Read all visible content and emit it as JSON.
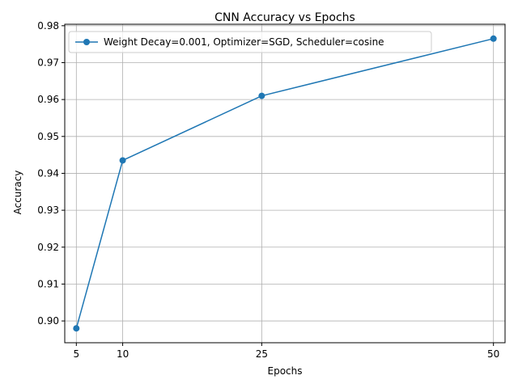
{
  "chart_data": {
    "type": "line",
    "title": "CNN Accuracy vs Epochs",
    "xlabel": "Epochs",
    "ylabel": "Accuracy",
    "x": [
      5,
      10,
      25,
      50
    ],
    "xticks": [
      5,
      10,
      25,
      50
    ],
    "xlim": [
      3.75,
      51.25
    ],
    "yticks": [
      0.9,
      0.91,
      0.92,
      0.93,
      0.94,
      0.95,
      0.96,
      0.97,
      0.98
    ],
    "ylim": [
      0.8941,
      0.9804
    ],
    "grid": true,
    "legend_position": "upper-left",
    "series": [
      {
        "name": "Weight Decay=0.001, Optimizer=SGD, Scheduler=cosine",
        "values": [
          0.898,
          0.9435,
          0.961,
          0.9765
        ],
        "color": "#1f77b4",
        "marker": "circle"
      }
    ]
  }
}
